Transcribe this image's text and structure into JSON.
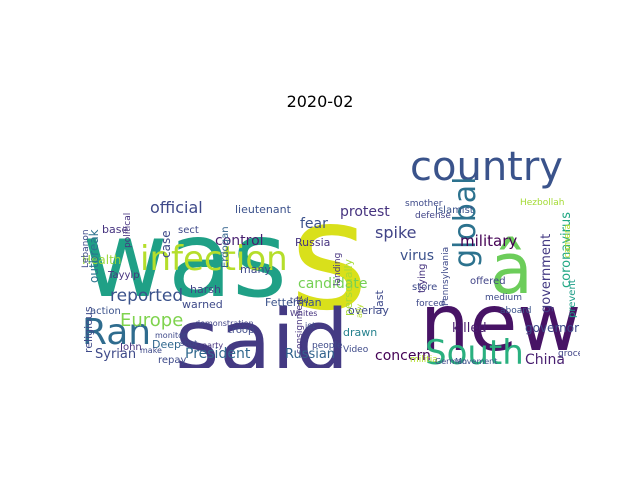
{
  "title": "2020-02",
  "words": [
    {
      "text": "was",
      "color": "#1fa086"
    },
    {
      "text": "s",
      "color": "#d9e01b"
    },
    {
      "text": "said",
      "color": "#443a83"
    },
    {
      "text": "new",
      "color": "#471365"
    },
    {
      "text": "â",
      "color": "#6ccd5a"
    },
    {
      "text": "country",
      "color": "#3a538b"
    },
    {
      "text": "infection",
      "color": "#b5de2b"
    },
    {
      "text": "Ran",
      "color": "#2f6c8e"
    },
    {
      "text": "South",
      "color": "#2ab07f"
    },
    {
      "text": "global",
      "color": "#2c728e"
    },
    {
      "text": "Europe",
      "color": "#7fd34e"
    },
    {
      "text": "reported",
      "color": "#3b528b"
    },
    {
      "text": "official",
      "color": "#3e4989"
    },
    {
      "text": "control",
      "color": "#481f70"
    },
    {
      "text": "military",
      "color": "#440154"
    },
    {
      "text": "spike",
      "color": "#414487"
    },
    {
      "text": "virus",
      "color": "#3b518b"
    },
    {
      "text": "protest",
      "color": "#46337f"
    },
    {
      "text": "fear",
      "color": "#3b518b"
    },
    {
      "text": "candidate",
      "color": "#75d054"
    },
    {
      "text": "President",
      "color": "#31688e"
    },
    {
      "text": "Russian",
      "color": "#33638d"
    },
    {
      "text": "concern",
      "color": "#440154"
    },
    {
      "text": "China",
      "color": "#481f70"
    },
    {
      "text": "Syrian",
      "color": "#3e4a89"
    },
    {
      "text": "government",
      "color": "#443a83"
    },
    {
      "text": "coronavirus",
      "color": "#22a884"
    },
    {
      "text": "killed",
      "color": "#481c6e"
    },
    {
      "text": "governor",
      "color": "#3e4a89"
    },
    {
      "text": "Health",
      "color": "#9bd93c"
    },
    {
      "text": "religious",
      "color": "#3e4a89"
    },
    {
      "text": "outbreak",
      "color": "#2c728e"
    },
    {
      "text": "case",
      "color": "#3e4989"
    },
    {
      "text": "base",
      "color": "#46337f"
    },
    {
      "text": "lieutenant",
      "color": "#3b518b"
    },
    {
      "text": "Russia",
      "color": "#46337f"
    },
    {
      "text": "harsh",
      "color": "#414487"
    },
    {
      "text": "many",
      "color": "#3e4a89"
    },
    {
      "text": "warned",
      "color": "#3e4a89"
    },
    {
      "text": "Fetterman",
      "color": "#3b528b"
    },
    {
      "text": "Tayyip",
      "color": "#46337f"
    },
    {
      "text": "Erdogan",
      "color": "#33638d"
    },
    {
      "text": "sect",
      "color": "#3e4989"
    },
    {
      "text": "John",
      "color": "#46337f"
    },
    {
      "text": "Deep",
      "color": "#31688e"
    },
    {
      "text": "repay",
      "color": "#3e4a89"
    },
    {
      "text": "troop",
      "color": "#3e4a89"
    },
    {
      "text": "action",
      "color": "#3b528b"
    },
    {
      "text": "Lebanon",
      "color": "#3e4989"
    },
    {
      "text": "political",
      "color": "#46337f"
    },
    {
      "text": "personally",
      "color": "#a5db36"
    },
    {
      "text": "last",
      "color": "#3e4989"
    },
    {
      "text": "overlay",
      "color": "#3e4a89"
    },
    {
      "text": "drawn",
      "color": "#26828e"
    },
    {
      "text": "landing",
      "color": "#46337f"
    },
    {
      "text": "store",
      "color": "#3e4989"
    },
    {
      "text": "trying",
      "color": "#46337f"
    },
    {
      "text": "Pennsylvania",
      "color": "#3e4989"
    },
    {
      "text": "offered",
      "color": "#414487"
    },
    {
      "text": "forced",
      "color": "#3e4989"
    },
    {
      "text": "prevent",
      "color": "#1f9e89"
    },
    {
      "text": "medium",
      "color": "#3e4a89"
    },
    {
      "text": "aboard",
      "color": "#3b528b"
    },
    {
      "text": "Islamist",
      "color": "#3b528b"
    },
    {
      "text": "Hezbollah",
      "color": "#a5db36"
    },
    {
      "text": "smother",
      "color": "#3e4a89"
    },
    {
      "text": "defense",
      "color": "#414487"
    },
    {
      "text": "Video",
      "color": "#3e4a89"
    },
    {
      "text": "grocer",
      "color": "#414487"
    },
    {
      "text": "militia",
      "color": "#b5de2b"
    },
    {
      "text": "German",
      "color": "#3e4989"
    },
    {
      "text": "Movement",
      "color": "#3b528b"
    },
    {
      "text": "demonstration",
      "color": "#414487"
    },
    {
      "text": "monitor",
      "color": "#3e4989"
    },
    {
      "text": "tried",
      "color": "#3e4a89"
    },
    {
      "text": "Whites",
      "color": "#46337f"
    },
    {
      "text": "people",
      "color": "#3e4a89"
    },
    {
      "text": "jet",
      "color": "#3e4989"
    },
    {
      "text": "make",
      "color": "#3e4989"
    },
    {
      "text": "party",
      "color": "#46337f"
    },
    {
      "text": "shot",
      "color": "#3e4989"
    },
    {
      "text": "ally",
      "color": "#b5de2b"
    },
    {
      "text": "camera",
      "color": "#b5de2b"
    },
    {
      "text": "consignment",
      "color": "#46337f"
    }
  ]
}
